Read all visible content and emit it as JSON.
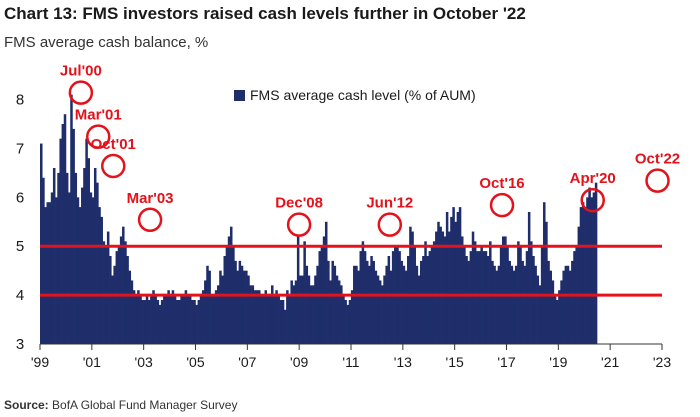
{
  "header": {
    "title": "Chart 13: FMS investors raised cash levels further in October '22",
    "subtitle": "FMS average cash balance, %"
  },
  "source": {
    "label": "Source:",
    "text": "BofA Global Fund Manager Survey"
  },
  "colors": {
    "bar": "#1f2e6b",
    "refline": "#e3121b",
    "annotation": "#e3121b",
    "text": "#1a1a1a"
  },
  "chart_data": {
    "type": "bar",
    "title": "FMS average cash balance, %",
    "xlabel": "",
    "ylabel": "",
    "ylim": [
      3,
      8.4
    ],
    "yticks": [
      3,
      4,
      5,
      6,
      7,
      8
    ],
    "xlim": [
      1999.0,
      2023.0
    ],
    "xticks": [
      {
        "label": "'99",
        "x": 1999.0
      },
      {
        "label": "'01",
        "x": 2001.0
      },
      {
        "label": "'03",
        "x": 2003.0
      },
      {
        "label": "'05",
        "x": 2005.0
      },
      {
        "label": "'07",
        "x": 2007.0
      },
      {
        "label": "'09",
        "x": 2009.0
      },
      {
        "label": "'11",
        "x": 2011.0
      },
      {
        "label": "'13",
        "x": 2013.0
      },
      {
        "label": "'15",
        "x": 2015.0
      },
      {
        "label": "'17",
        "x": 2017.0
      },
      {
        "label": "'19",
        "x": 2019.0
      },
      {
        "label": "'21",
        "x": 2021.0
      },
      {
        "label": "'23",
        "x": 2023.0
      }
    ],
    "legend": {
      "label": "FMS average cash level (% of AUM)",
      "position": "top-center"
    },
    "reference_lines": [
      5.0,
      4.0
    ],
    "series": [
      {
        "name": "FMS average cash level (% of AUM)",
        "x_start": 1999.0,
        "step": 0.0833,
        "values": [
          7.1,
          6.4,
          5.8,
          5.9,
          5.9,
          6.1,
          6.6,
          6.0,
          6.5,
          7.2,
          7.5,
          7.7,
          6.5,
          6.1,
          8.1,
          7.4,
          6.5,
          6.0,
          5.8,
          6.2,
          6.6,
          7.2,
          6.8,
          6.1,
          6.0,
          6.6,
          6.3,
          5.8,
          5.6,
          5.1,
          5.0,
          5.3,
          4.8,
          4.4,
          4.6,
          4.9,
          5.0,
          5.2,
          5.4,
          5.1,
          4.8,
          4.5,
          4.3,
          4.1,
          4.0,
          4.1,
          4.0,
          3.9,
          3.9,
          4.0,
          3.9,
          4.0,
          4.1,
          4.0,
          3.9,
          3.8,
          3.9,
          4.0,
          4.0,
          4.1,
          4.0,
          4.1,
          4.0,
          3.9,
          3.9,
          4.0,
          4.0,
          4.1,
          4.0,
          4.0,
          3.9,
          3.9,
          3.8,
          3.9,
          4.0,
          4.1,
          4.3,
          4.6,
          4.5,
          4.0,
          4.0,
          4.1,
          4.2,
          4.5,
          4.4,
          4.8,
          5.0,
          5.2,
          5.4,
          5.0,
          4.7,
          4.5,
          4.7,
          4.6,
          4.5,
          4.5,
          4.4,
          4.2,
          4.2,
          4.1,
          4.1,
          4.1,
          4.0,
          4.0,
          4.1,
          4.0,
          4.0,
          4.2,
          4.0,
          4.1,
          4.0,
          3.9,
          3.9,
          3.7,
          4.1,
          4.0,
          4.3,
          4.2,
          4.3,
          5.2,
          4.4,
          4.4,
          5.1,
          4.6,
          4.4,
          4.2,
          4.2,
          4.4,
          4.6,
          4.9,
          5.0,
          5.2,
          5.5,
          4.7,
          4.3,
          4.7,
          4.6,
          4.4,
          4.3,
          4.2,
          4.0,
          3.9,
          3.8,
          3.9,
          4.1,
          4.6,
          4.6,
          4.5,
          4.9,
          5.1,
          4.9,
          4.7,
          4.6,
          4.8,
          4.7,
          4.5,
          4.4,
          4.3,
          4.2,
          4.4,
          4.6,
          4.8,
          4.5,
          4.9,
          5.0,
          5.0,
          4.9,
          4.7,
          4.6,
          4.5,
          4.8,
          5.4,
          5.3,
          5.0,
          4.6,
          4.4,
          4.7,
          4.8,
          5.1,
          4.8,
          4.9,
          5.0,
          5.1,
          5.3,
          5.5,
          5.4,
          5.3,
          5.2,
          5.7,
          5.3,
          5.6,
          5.8,
          5.5,
          5.7,
          5.8,
          5.2,
          5.0,
          4.8,
          4.7,
          4.9,
          5.3,
          5.1,
          4.9,
          4.9,
          5.0,
          4.9,
          4.9,
          4.8,
          5.1,
          4.7,
          4.6,
          4.5,
          4.6,
          5.0,
          5.2,
          5.2,
          5.0,
          4.7,
          4.6,
          4.5,
          4.6,
          5.1,
          5.0,
          4.7,
          4.6,
          4.9,
          5.7,
          5.1,
          4.8,
          4.6,
          4.4,
          4.2,
          5.0,
          5.9,
          5.5,
          4.7,
          4.5,
          4.3,
          4.0,
          3.9,
          4.1,
          4.3,
          4.5,
          4.6,
          4.6,
          4.5,
          4.7,
          4.9,
          5.0,
          5.4,
          5.8,
          5.9,
          5.8,
          6.0,
          6.2,
          6.0,
          6.1,
          6.3
        ]
      }
    ],
    "annotations": [
      {
        "label": "Jul'00",
        "x": 2000.5,
        "value": 8.1
      },
      {
        "label": "Mar'01",
        "x": 2001.17,
        "value": 7.2
      },
      {
        "label": "Oct'01",
        "x": 2001.75,
        "value": 6.6
      },
      {
        "label": "Mar'03",
        "x": 2003.17,
        "value": 5.5
      },
      {
        "label": "Dec'08",
        "x": 2008.92,
        "value": 5.4
      },
      {
        "label": "Jun'12",
        "x": 2012.42,
        "value": 5.4
      },
      {
        "label": "Oct'16",
        "x": 2016.75,
        "value": 5.8
      },
      {
        "label": "Apr'20",
        "x": 2020.25,
        "value": 5.9
      },
      {
        "label": "Oct'22",
        "x": 2022.75,
        "value": 6.3
      }
    ]
  }
}
